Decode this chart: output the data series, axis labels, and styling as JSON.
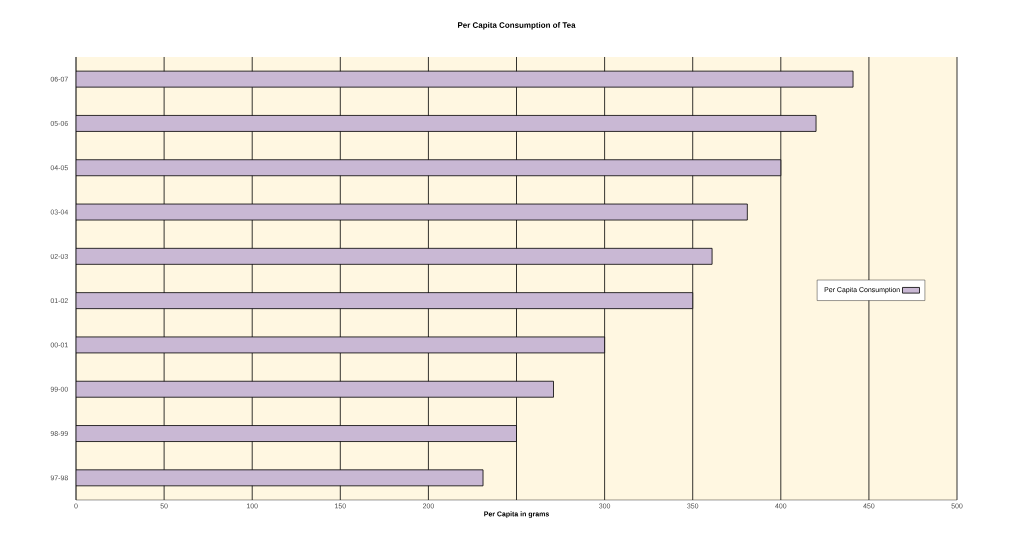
{
  "chart_data": {
    "type": "bar",
    "orientation": "horizontal",
    "title": "Per Capita Consumption of Tea",
    "xlabel": "Per Capita in grams",
    "categories": [
      "06-07",
      "05-06",
      "04-05",
      "03-04",
      "02-03",
      "01-02",
      "00-01",
      "99-00",
      "98-99",
      "97-98"
    ],
    "series": [
      {
        "name": "Per Capita Consumption",
        "color": "#c9b8d4",
        "values": [
          441,
          420,
          400,
          381,
          361,
          350,
          300,
          271,
          250,
          231
        ]
      }
    ],
    "xlim": [
      0,
      500
    ],
    "xticks": [
      0,
      50,
      100,
      150,
      200,
      {
        "value": 250,
        "label": null
      },
      300,
      350,
      400,
      450,
      500
    ],
    "grid": "x",
    "legend": "right"
  }
}
